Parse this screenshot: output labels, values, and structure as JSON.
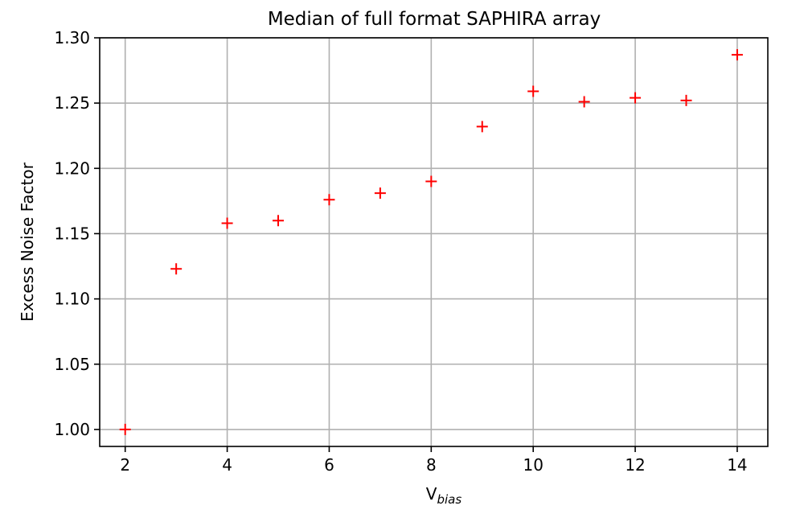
{
  "chart_data": {
    "type": "scatter",
    "title": "Median of full format SAPHIRA array",
    "xlabel_main": "V",
    "xlabel_sub": "bias",
    "ylabel": "Excess Noise Factor",
    "xlim": [
      1.5,
      14.6
    ],
    "ylim": [
      0.987,
      1.3
    ],
    "x_ticks": [
      2,
      4,
      6,
      8,
      10,
      12,
      14
    ],
    "x_tick_labels": [
      "2",
      "4",
      "6",
      "8",
      "10",
      "12",
      "14"
    ],
    "y_ticks": [
      1.0,
      1.05,
      1.1,
      1.15,
      1.2,
      1.25,
      1.3
    ],
    "y_tick_labels": [
      "1.00",
      "1.05",
      "1.10",
      "1.15",
      "1.20",
      "1.25",
      "1.30"
    ],
    "grid": true,
    "marker": "+",
    "marker_color": "#ff0000",
    "grid_color": "#b0b0b0",
    "series": [
      {
        "x": [
          2,
          3,
          4,
          5,
          6,
          7,
          8,
          9,
          10,
          11,
          12,
          13,
          14
        ],
        "y": [
          1.0,
          1.123,
          1.158,
          1.16,
          1.176,
          1.181,
          1.19,
          1.232,
          1.259,
          1.251,
          1.254,
          1.252,
          1.287
        ]
      }
    ]
  }
}
